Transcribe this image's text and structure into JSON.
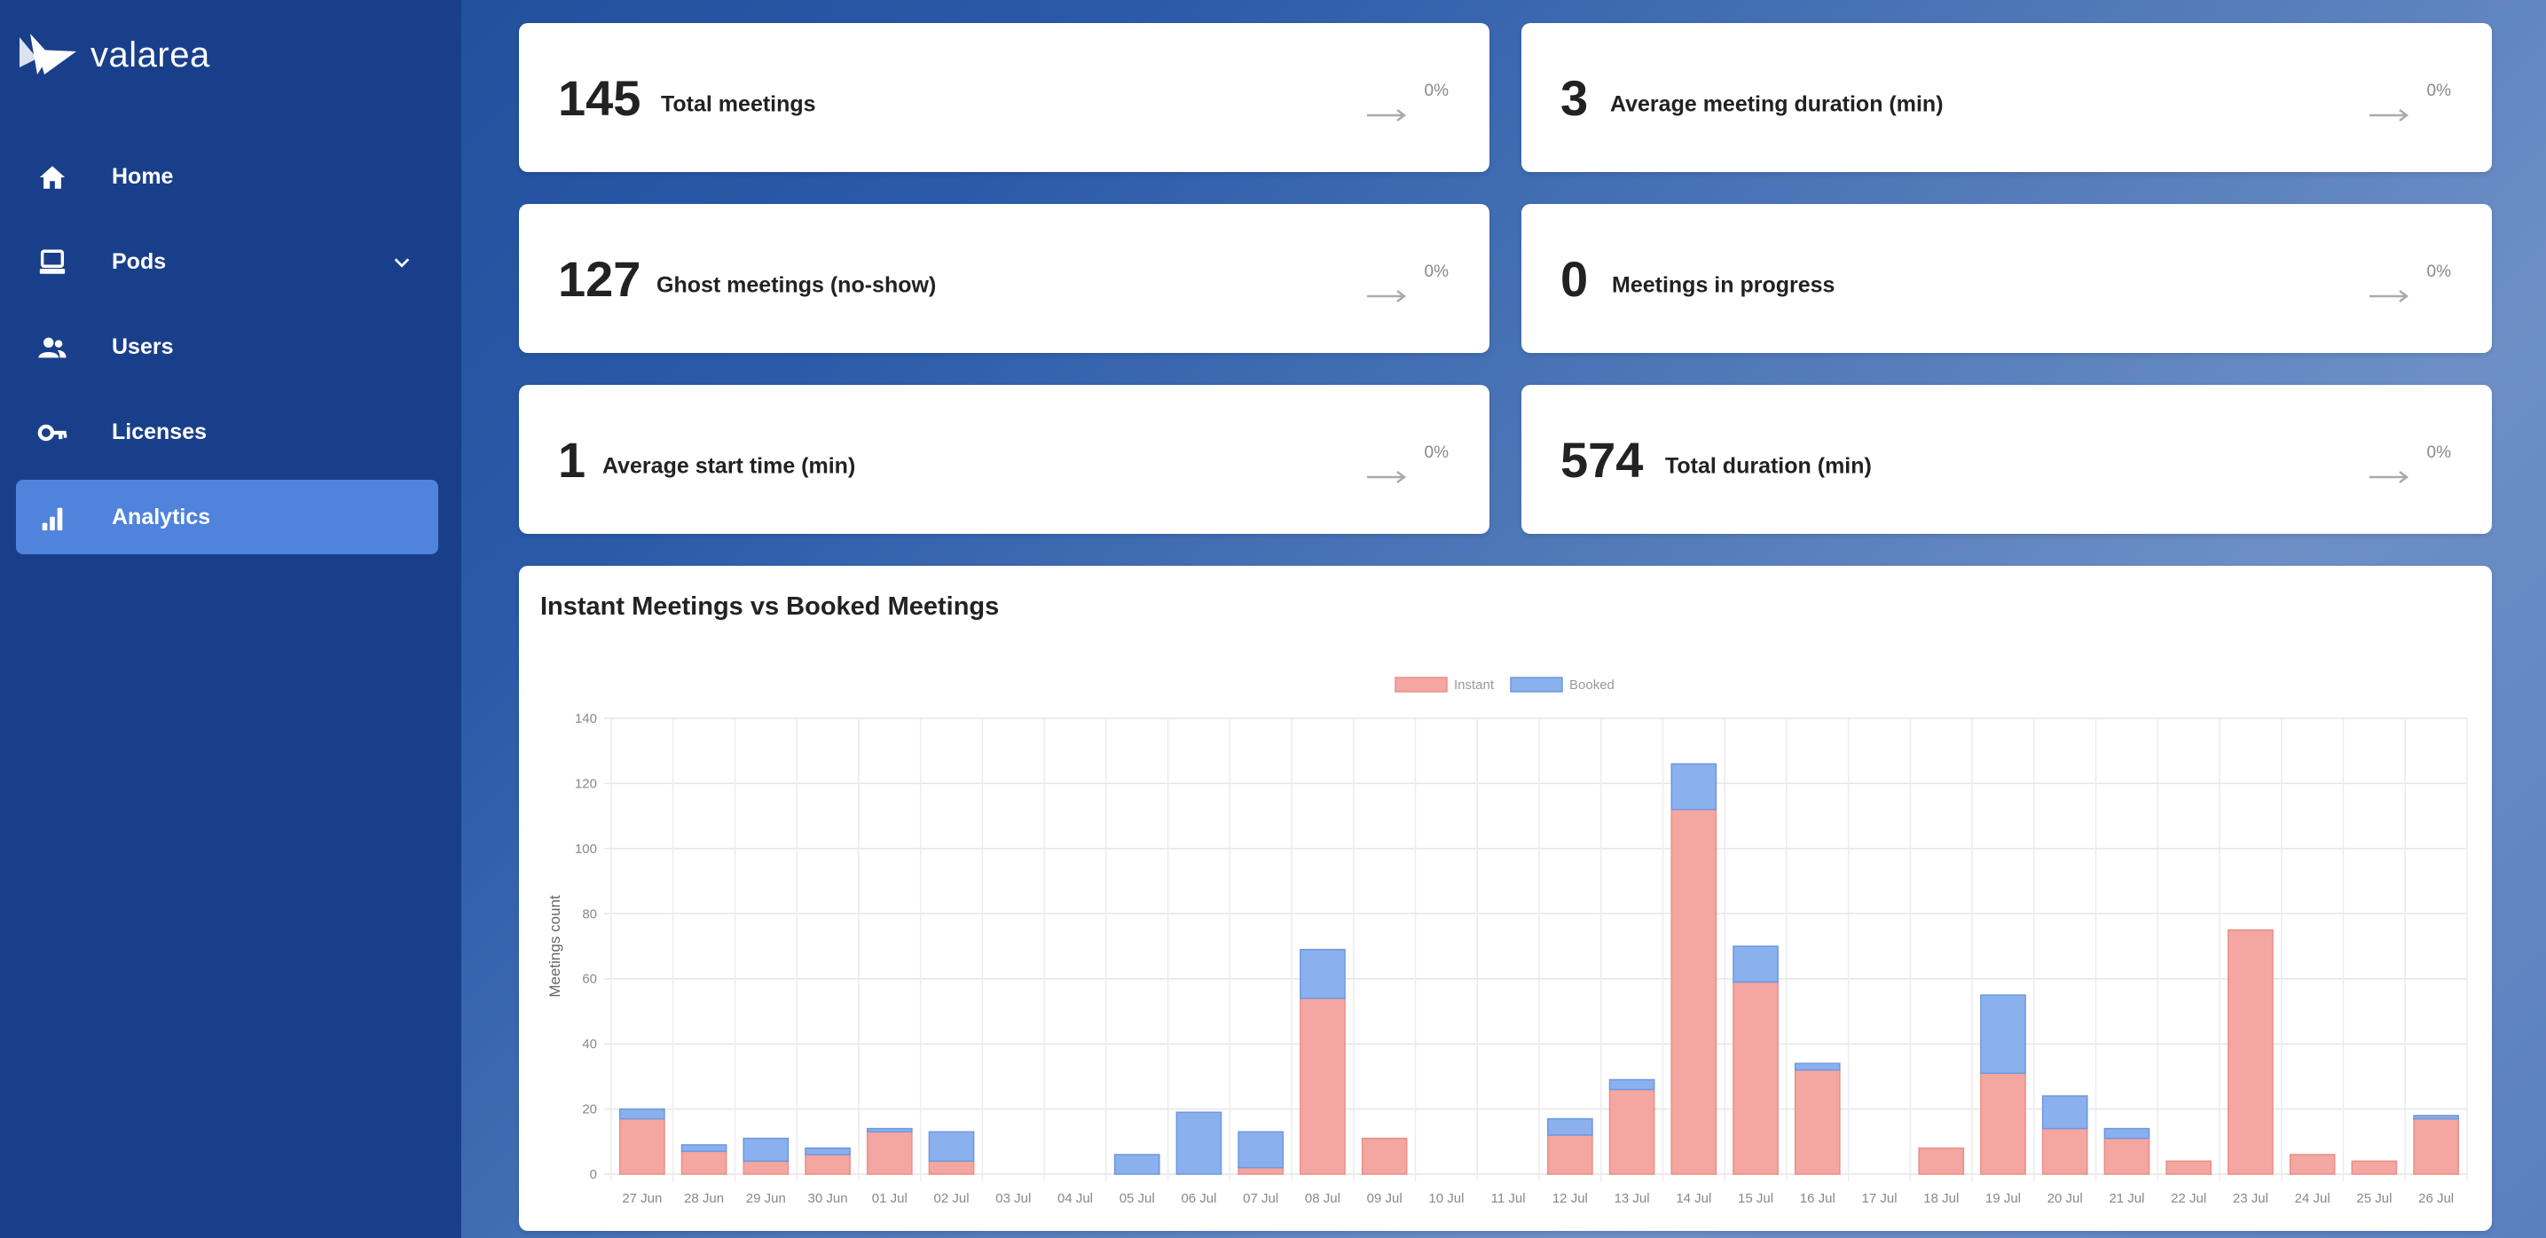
{
  "brand": {
    "name": "valarea"
  },
  "sidebar": {
    "items": [
      {
        "label": "Home",
        "icon": "home-icon"
      },
      {
        "label": "Pods",
        "icon": "laptop-icon"
      },
      {
        "label": "Users",
        "icon": "users-icon"
      },
      {
        "label": "Licenses",
        "icon": "key-icon"
      },
      {
        "label": "Analytics",
        "icon": "analytics-icon",
        "active": true
      }
    ]
  },
  "stats": [
    {
      "value": "145",
      "label": "Total meetings",
      "trend": "0%"
    },
    {
      "value": "3",
      "label": "Average meeting duration (min)",
      "trend": "0%"
    },
    {
      "value": "127",
      "label": "Ghost meetings (no-show)",
      "trend": "0%"
    },
    {
      "value": "0",
      "label": "Meetings in progress",
      "trend": "0%"
    },
    {
      "value": "1",
      "label": "Average start time (min)",
      "trend": "0%"
    },
    {
      "value": "574",
      "label": "Total duration (min)",
      "trend": "0%"
    }
  ],
  "colors": {
    "instant": "#f4a6a0",
    "booked": "#8ab0ee",
    "active_nav": "#4f83dc"
  },
  "chart_data": {
    "type": "bar",
    "stacked": true,
    "title": "Instant Meetings vs Booked Meetings",
    "ylabel": "Meetings count",
    "xlabel": "",
    "ylim": [
      0,
      140
    ],
    "yticks": [
      0,
      20,
      40,
      60,
      80,
      100,
      120,
      140
    ],
    "legend": "top",
    "grid": true,
    "categories": [
      "27 Jun",
      "28 Jun",
      "29 Jun",
      "30 Jun",
      "01 Jul",
      "02 Jul",
      "03 Jul",
      "04 Jul",
      "05 Jul",
      "06 Jul",
      "07 Jul",
      "08 Jul",
      "09 Jul",
      "10 Jul",
      "11 Jul",
      "12 Jul",
      "13 Jul",
      "14 Jul",
      "15 Jul",
      "16 Jul",
      "17 Jul",
      "18 Jul",
      "19 Jul",
      "20 Jul",
      "21 Jul",
      "22 Jul",
      "23 Jul",
      "24 Jul",
      "25 Jul",
      "26 Jul"
    ],
    "series": [
      {
        "name": "Instant",
        "values": [
          17,
          7,
          4,
          6,
          13,
          4,
          0,
          0,
          0,
          0,
          2,
          54,
          11,
          0,
          0,
          12,
          26,
          112,
          59,
          32,
          0,
          8,
          31,
          14,
          11,
          4,
          75,
          6,
          4,
          17
        ]
      },
      {
        "name": "Booked",
        "values": [
          3,
          2,
          7,
          2,
          1,
          9,
          0,
          0,
          6,
          19,
          11,
          15,
          0,
          0,
          0,
          5,
          3,
          14,
          11,
          2,
          0,
          0,
          24,
          10,
          3,
          0,
          0,
          0,
          0,
          1
        ]
      }
    ]
  }
}
